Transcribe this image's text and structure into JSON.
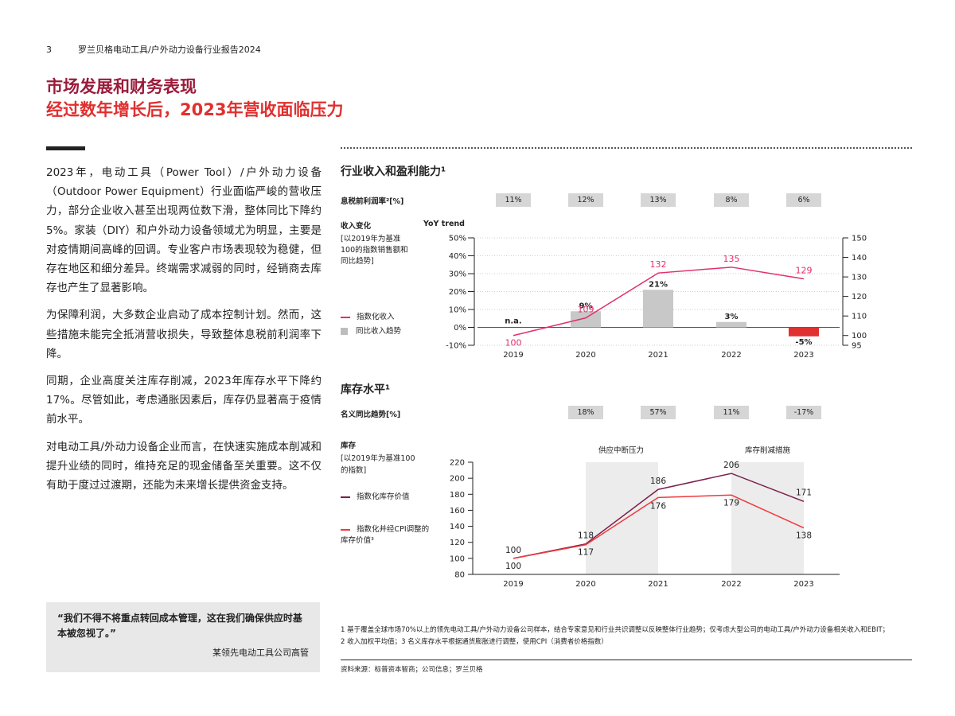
{
  "header": {
    "page_number": "3",
    "doc_title": "罗兰贝格电动工具/户外动力设备行业报告2024"
  },
  "title_line1": "市场发展和财务表现",
  "title_line2": "经过数年增长后，2023年营收面临压力",
  "body_paragraphs": [
    "2023年，电动工具（Power Tool）/户外动力设备（Outdoor Power Equipment）行业面临严峻的营收压力，部分企业收入甚至出现两位数下滑，整体同比下降约5%。家装（DIY）和户外动力设备领域尤为明显，主要是对疫情期间高峰的回调。专业客户市场表现较为稳健，但存在地区和细分差异。终端需求减弱的同时，经销商去库存也产生了显著影响。",
    "为保障利润，大多数企业启动了成本控制计划。然而，这些措施未能完全抵消营收损失，导致整体息税前利润率下降。",
    "同期，企业高度关注库存削减，2023年库存水平下降约17%。尽管如此，考虑通胀因素后，库存仍显著高于疫情前水平。",
    "对电动工具/外动力设备企业而言，在快速实施成本削减和提升业绩的同时，维持充足的现金储备至关重要。这不仅有助于度过过渡期，还能为未来增长提供资金支持。"
  ],
  "quote": {
    "text": "“我们不得不将重点转回成本管理，这在我们确保供应时基本被忽视了。”",
    "attribution": "某领先电动工具公司高管"
  },
  "chart1": {
    "title": "行业收入和盈利能力¹",
    "ebit_label": "息税前利润率²[%]",
    "ebit_values": [
      "11%",
      "12%",
      "13%",
      "8%",
      "6%"
    ],
    "left_axis_title_1": "收入变化",
    "left_axis_title_2": "[以2019年为基准",
    "left_axis_title_3": "100的指数销售额和",
    "left_axis_title_4": "同比趋势]",
    "right_axis_title": "YoY trend",
    "legend_line": "指数化收入",
    "legend_bar": "同比收入趋势"
  },
  "chart2": {
    "title": "库存水平¹",
    "nominal_label": "名义同比趋势[%]",
    "nominal_values": [
      "18%",
      "57%",
      "11%",
      "-17%"
    ],
    "axis_title_1": "库存",
    "axis_title_2": "[以2019年为基准100",
    "axis_title_3": "的指数]",
    "legend_1": "指数化库存价值",
    "legend_2_line1": "指数化并经CPI调整的",
    "legend_2_line2": "库存价值³",
    "band_label_1": "供应中断压力",
    "band_label_2": "库存削减措施"
  },
  "chart_data": [
    {
      "type": "bar",
      "title": "行业收入和盈利能力¹",
      "categories": [
        "2019",
        "2020",
        "2021",
        "2022",
        "2023"
      ],
      "left_axis": {
        "label": "收入变化 [以2019年为基准100的指数销售额和同比趋势]",
        "range": [
          -10,
          50
        ],
        "ticks": [
          "-10%",
          "0%",
          "10%",
          "20%",
          "30%",
          "40%",
          "50%"
        ]
      },
      "right_axis": {
        "label": "YoY trend",
        "range": [
          95,
          150
        ],
        "ticks": [
          "95",
          "100",
          "110",
          "120",
          "130",
          "140",
          "150"
        ]
      },
      "series": [
        {
          "name": "同比收入趋势",
          "type": "bar",
          "values": [
            null,
            9,
            21,
            3,
            -5
          ],
          "labels": [
            "n.a.",
            "9%",
            "21%",
            "3%",
            "-5%"
          ],
          "colors": [
            "#c8c8c8",
            "#c8c8c8",
            "#c8c8c8",
            "#c8c8c8",
            "#e0302f"
          ]
        },
        {
          "name": "指数化收入",
          "type": "line",
          "axis": "right",
          "values": [
            100,
            109,
            132,
            135,
            129
          ],
          "color": "#e0306a"
        }
      ]
    },
    {
      "type": "line",
      "title": "库存水平¹",
      "categories": [
        "2019",
        "2020",
        "2021",
        "2022",
        "2023"
      ],
      "y_axis": {
        "label": "库存 [以2019年为基准100的指数]",
        "range": [
          80,
          220
        ],
        "ticks": [
          "80",
          "100",
          "120",
          "140",
          "160",
          "180",
          "200",
          "220"
        ]
      },
      "series": [
        {
          "name": "指数化库存价值",
          "values": [
            100,
            118,
            186,
            206,
            171
          ],
          "color": "#7b1e4a"
        },
        {
          "name": "指数化并经CPI调整的库存价值³",
          "values": [
            100,
            117,
            176,
            179,
            138
          ],
          "color": "#f0393d"
        }
      ],
      "shaded_bands": [
        {
          "label": "供应中断压力",
          "from": "2020",
          "to": "2021"
        },
        {
          "label": "库存削减措施",
          "from": "2022",
          "to": "2023"
        }
      ]
    }
  ],
  "footnotes": {
    "line1": "1 基于覆盖全球市场70%以上的领先电动工具/户外动力设备公司样本，结合专家意见和行业共识调整以反映整体行业趋势；仅考虑大型公司的电动工具/户外动力设备相关收入和EBIT；",
    "line2": "2 收入加权平均值；3 名义库存水平根据通货膨胀进行调整，使用CPI（消费者价格指数）"
  },
  "source": "资料来源：标普资本智商；公司信息；罗兰贝格",
  "colors": {
    "brand_dark": "#9b1b3a",
    "brand_red": "#e0302f",
    "line_pink": "#e0306a",
    "line_maroon": "#7b1e4a",
    "bar_gray": "#c8c8c8",
    "band_gray": "#ececec"
  }
}
